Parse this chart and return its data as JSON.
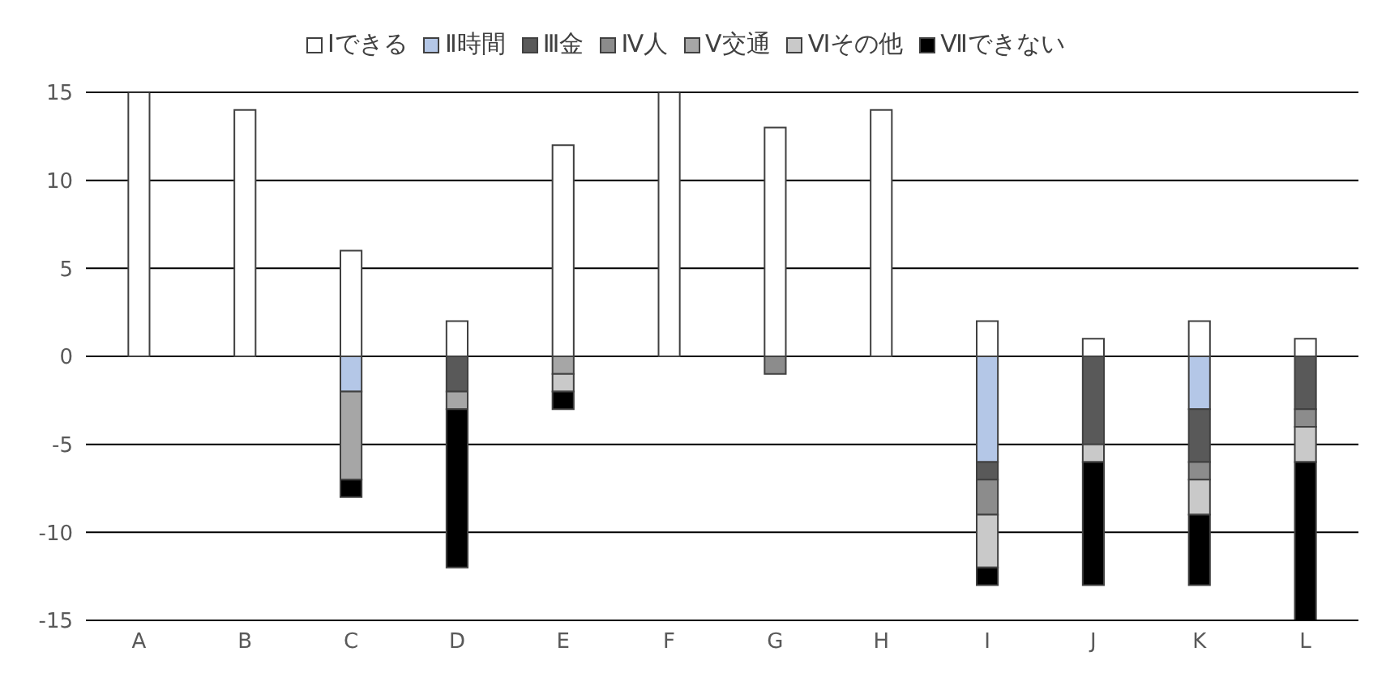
{
  "chart_data": {
    "type": "bar",
    "stacked": true,
    "categories": [
      "A",
      "B",
      "C",
      "D",
      "E",
      "F",
      "G",
      "H",
      "I",
      "J",
      "K",
      "L"
    ],
    "series": [
      {
        "name": "Ⅰできる",
        "color": "#ffffff",
        "values": [
          15,
          14,
          6,
          2,
          12,
          15,
          13,
          14,
          2,
          1,
          2,
          1
        ]
      },
      {
        "name": "Ⅱ時間",
        "color": "#b4c7e7",
        "values": [
          null,
          null,
          -2,
          null,
          null,
          null,
          null,
          null,
          -6,
          null,
          -3,
          null
        ]
      },
      {
        "name": "Ⅲ金",
        "color": "#595959",
        "values": [
          null,
          null,
          null,
          -2,
          null,
          null,
          null,
          null,
          -1,
          -5,
          -3,
          -3
        ]
      },
      {
        "name": "Ⅳ人",
        "color": "#8c8c8c",
        "values": [
          null,
          null,
          null,
          null,
          null,
          null,
          -1,
          null,
          -2,
          null,
          -1,
          -1
        ]
      },
      {
        "name": "Ⅴ交通",
        "color": "#a6a6a6",
        "values": [
          null,
          null,
          -5,
          -1,
          -1,
          null,
          null,
          null,
          null,
          null,
          null,
          null
        ]
      },
      {
        "name": "Ⅵその他",
        "color": "#c9c9c9",
        "values": [
          null,
          null,
          null,
          null,
          -1,
          null,
          null,
          null,
          -3,
          -1,
          -2,
          -2
        ]
      },
      {
        "name": "Ⅶできない",
        "color": "#000000",
        "values": [
          null,
          null,
          -1,
          -9,
          -1,
          null,
          null,
          null,
          -1,
          -7,
          -4,
          -9
        ]
      }
    ],
    "ylim": [
      -15,
      15
    ],
    "yticks": [
      -15,
      -10,
      -5,
      0,
      5,
      10,
      15
    ],
    "grid": "y",
    "legend": "top"
  }
}
